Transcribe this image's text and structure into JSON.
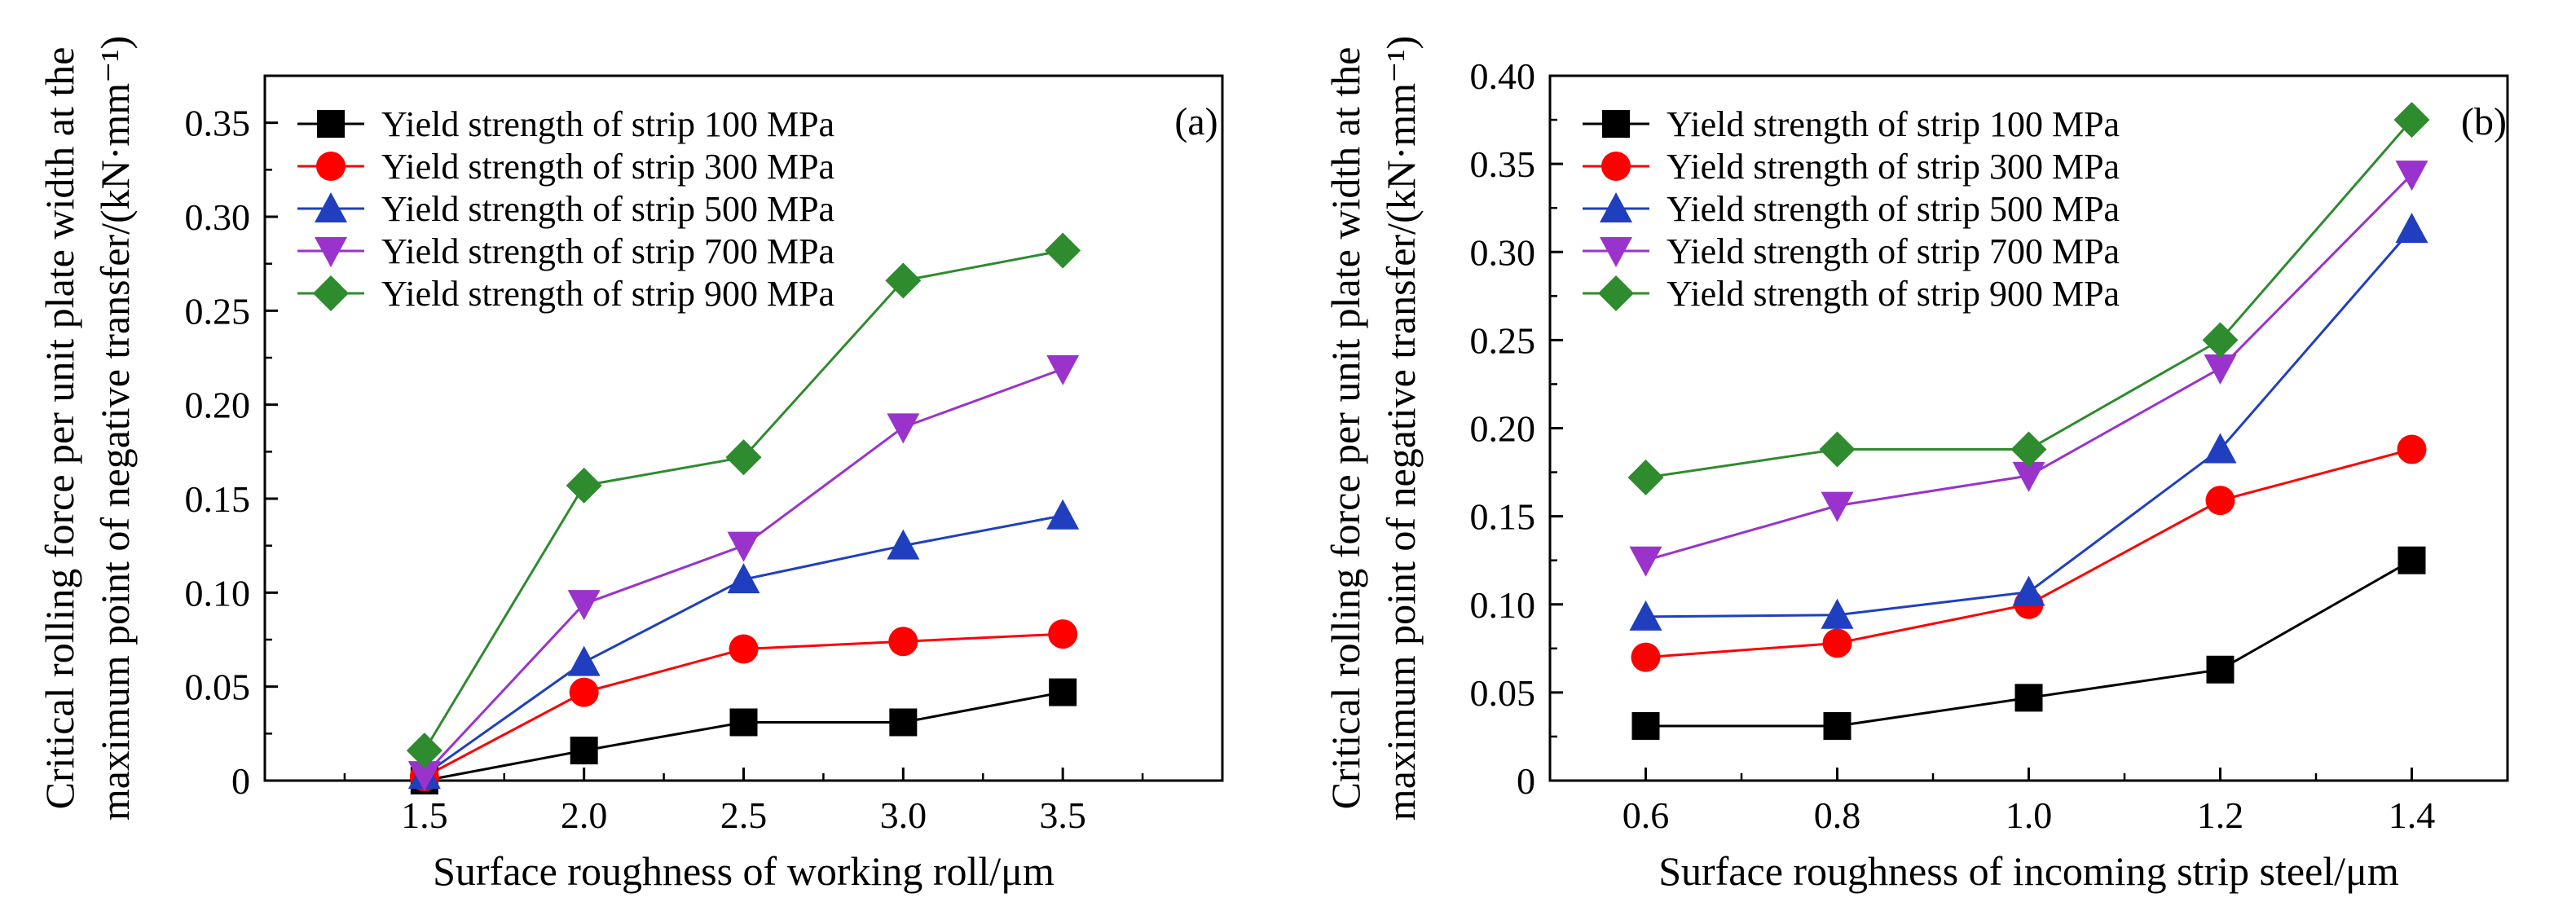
{
  "series_colors": [
    "#000000",
    "#ff0000",
    "#1f3fbf",
    "#9933cc",
    "#2e8b2e"
  ],
  "series_markers": [
    "square",
    "circle",
    "triangle-up",
    "triangle-down",
    "diamond"
  ],
  "chart_data": [
    {
      "type": "line",
      "panel": "(a)",
      "xlabel": "Surface roughness of working roll/μm",
      "ylabel": [
        "Critical rolling force per unit plate width at the",
        "maximum point of negative transfer/(kN·mm⁻¹)"
      ],
      "x": [
        1.5,
        2.0,
        2.5,
        3.0,
        3.5
      ],
      "x_tick_labels": [
        "1.5",
        "2.0",
        "2.5",
        "3.0",
        "3.5"
      ],
      "xlim": [
        1.0,
        4.0
      ],
      "ylim": [
        0,
        0.375
      ],
      "y_ticks": [
        0,
        0.05,
        0.1,
        0.15,
        0.2,
        0.25,
        0.3,
        0.35
      ],
      "y_tick_labels": [
        "0",
        "0.05",
        "0.10",
        "0.15",
        "0.20",
        "0.25",
        "0.30",
        "0.35"
      ],
      "legend": "top-left",
      "grid": false,
      "series": [
        {
          "name": "Yield strength of strip 100 MPa",
          "values": [
            0.0,
            0.016,
            0.031,
            0.031,
            0.047
          ]
        },
        {
          "name": "Yield strength of strip 300 MPa",
          "values": [
            0.002,
            0.047,
            0.07,
            0.074,
            0.078
          ]
        },
        {
          "name": "Yield strength of strip 500 MPa",
          "values": [
            0.003,
            0.063,
            0.107,
            0.125,
            0.141
          ]
        },
        {
          "name": "Yield strength of strip 700 MPa",
          "values": [
            0.003,
            0.094,
            0.125,
            0.188,
            0.219
          ]
        },
        {
          "name": "Yield strength of strip 900 MPa",
          "values": [
            0.016,
            0.157,
            0.172,
            0.266,
            0.282
          ]
        }
      ]
    },
    {
      "type": "line",
      "panel": "(b)",
      "xlabel": "Surface roughness of incoming strip steel/μm",
      "ylabel": [
        "Critical rolling force per unit plate width at the",
        "maximum point of negative transfer/(kN·mm⁻¹)"
      ],
      "x": [
        0.6,
        0.8,
        1.0,
        1.2,
        1.4
      ],
      "x_tick_labels": [
        "0.6",
        "0.8",
        "1.0",
        "1.2",
        "1.4"
      ],
      "xlim": [
        0.5,
        1.5
      ],
      "ylim": [
        0,
        0.4
      ],
      "y_ticks": [
        0,
        0.05,
        0.1,
        0.15,
        0.2,
        0.25,
        0.3,
        0.35,
        0.4
      ],
      "y_tick_labels": [
        "0",
        "0.05",
        "0.10",
        "0.15",
        "0.20",
        "0.25",
        "0.30",
        "0.35",
        "0.40"
      ],
      "legend": "top-left",
      "grid": false,
      "series": [
        {
          "name": "Yield strength of strip 100 MPa",
          "values": [
            0.031,
            0.031,
            0.047,
            0.063,
            0.125
          ]
        },
        {
          "name": "Yield strength of strip 300 MPa",
          "values": [
            0.07,
            0.078,
            0.1,
            0.159,
            0.188
          ]
        },
        {
          "name": "Yield strength of strip 500 MPa",
          "values": [
            0.093,
            0.094,
            0.107,
            0.188,
            0.313
          ]
        },
        {
          "name": "Yield strength of strip 700 MPa",
          "values": [
            0.125,
            0.156,
            0.173,
            0.234,
            0.344
          ]
        },
        {
          "name": "Yield strength of strip 900 MPa",
          "values": [
            0.172,
            0.188,
            0.188,
            0.25,
            0.375
          ]
        }
      ]
    }
  ]
}
